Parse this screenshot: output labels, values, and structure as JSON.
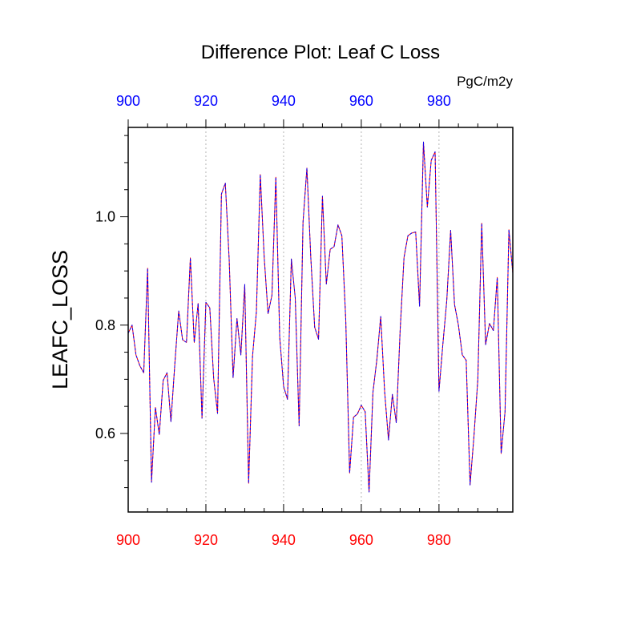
{
  "chart_data": {
    "type": "line",
    "title": "Difference Plot: Leaf C Loss",
    "units": "PgC/m2y",
    "ylabel": "LEAFC_LOSS",
    "xlabel": "",
    "xlim": [
      900,
      999
    ],
    "ylim": [
      0.455,
      1.165
    ],
    "x_ticks": [
      "900",
      "920",
      "940",
      "960",
      "980"
    ],
    "y_ticks": [
      "0.6",
      "0.8",
      "1.0"
    ],
    "grid": "vertical-dotted",
    "colors": {
      "bottom_tick_labels": "#ff0000",
      "top_tick_labels": "#0000ff",
      "series_a": "#ff0000",
      "series_b": "#0000ff",
      "grid": "#b4b4b4",
      "frame": "#000000"
    },
    "series": [
      {
        "x": [
          900,
          901,
          902,
          903,
          904,
          905,
          906,
          907,
          908,
          909,
          910,
          911,
          912,
          913,
          914,
          915,
          916,
          917,
          918,
          919,
          920,
          921,
          922,
          923,
          924,
          925,
          926,
          927,
          928,
          929,
          930,
          931,
          932,
          933,
          934,
          935,
          936,
          937,
          938,
          939,
          940,
          941,
          942,
          943,
          944,
          945,
          946,
          947,
          948,
          949,
          950,
          951,
          952,
          953,
          954,
          955,
          956,
          957,
          958,
          959,
          960,
          961,
          962,
          963,
          964,
          965,
          966,
          967,
          968,
          969,
          970,
          971,
          972,
          973,
          974,
          975,
          976,
          977,
          978,
          979,
          980,
          981,
          982,
          983,
          984,
          985,
          986,
          987,
          988,
          989,
          990,
          991,
          992,
          993,
          994,
          995,
          996,
          997,
          998,
          999
        ],
        "values": [
          0.785,
          0.8,
          0.745,
          0.725,
          0.712,
          0.905,
          0.51,
          0.648,
          0.598,
          0.698,
          0.712,
          0.622,
          0.728,
          0.826,
          0.773,
          0.768,
          0.924,
          0.768,
          0.84,
          0.628,
          0.842,
          0.832,
          0.702,
          0.637,
          1.042,
          1.062,
          0.92,
          0.703,
          0.812,
          0.745,
          0.875,
          0.508,
          0.742,
          0.825,
          1.078,
          0.926,
          0.821,
          0.855,
          1.073,
          0.778,
          0.687,
          0.663,
          0.922,
          0.85,
          0.614,
          0.99,
          1.09,
          0.925,
          0.796,
          0.774,
          1.038,
          0.876,
          0.94,
          0.945,
          0.985,
          0.965,
          0.81,
          0.527,
          0.63,
          0.636,
          0.652,
          0.64,
          0.492,
          0.676,
          0.736,
          0.816,
          0.678,
          0.588,
          0.672,
          0.62,
          0.79,
          0.925,
          0.965,
          0.97,
          0.972,
          0.835,
          1.138,
          1.018,
          1.104,
          1.12,
          0.678,
          0.765,
          0.845,
          0.975,
          0.838,
          0.8,
          0.745,
          0.735,
          0.505,
          0.595,
          0.7,
          0.988,
          0.764,
          0.803,
          0.79,
          0.888,
          0.563,
          0.64,
          0.976,
          0.896
        ]
      }
    ]
  }
}
